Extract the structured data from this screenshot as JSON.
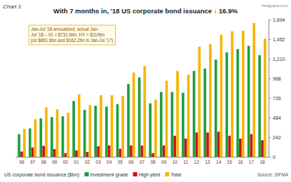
{
  "chart_data": {
    "type": "bar",
    "label": "Chart 1",
    "title": "With 7 months in, '18 US corporate bond issuance ↓ 16.9%",
    "watermark": "hedgopia.com",
    "annotation": [
      "Jan-Jul '18 annualized; actual Jan-",
      "Jul '18 – IG = $731.6bn, HY = $119bn",
      "(vs $861.8bn and $162.2bn in Jan-Jul '17)"
    ],
    "legend_title": "US corporate bond issuance ($bn):",
    "source": "Source: SIFMA",
    "categories": [
      "96",
      "97",
      "98",
      "99",
      "00",
      "01",
      "02",
      "03",
      "04",
      "05",
      "06",
      "07",
      "08",
      "09",
      "10",
      "11",
      "12",
      "13",
      "14",
      "15",
      "16",
      "17",
      "18"
    ],
    "series": [
      {
        "name": "Investment grade",
        "color": "#1e9e3e",
        "values": [
          280,
          350,
          475,
          490,
          500,
          690,
          580,
          630,
          620,
          650,
          900,
          980,
          660,
          800,
          800,
          790,
          1060,
          1090,
          1200,
          1290,
          1330,
          1370,
          1255
        ]
      },
      {
        "name": "High yield",
        "color": "#cc1414",
        "values": [
          65,
          115,
          135,
          95,
          45,
          80,
          60,
          130,
          140,
          100,
          140,
          140,
          45,
          140,
          260,
          225,
          300,
          300,
          310,
          260,
          225,
          280,
          205
        ]
      },
      {
        "name": "Total",
        "color": "#f7b500",
        "values": [
          345,
          465,
          610,
          585,
          545,
          770,
          640,
          760,
          760,
          750,
          1040,
          1120,
          705,
          940,
          1060,
          1015,
          1360,
          1390,
          1510,
          1550,
          1555,
          1650,
          1460
        ]
      }
    ],
    "ylim": [
      0,
      1694
    ],
    "yticks": [
      0,
      242,
      484,
      726,
      968,
      {
        "value": 1210,
        "label": "1,210"
      },
      {
        "value": 1452,
        "label": "1,452"
      },
      {
        "value": 1694,
        "label": "1,694"
      }
    ],
    "grid": false,
    "legend": "bottom"
  }
}
